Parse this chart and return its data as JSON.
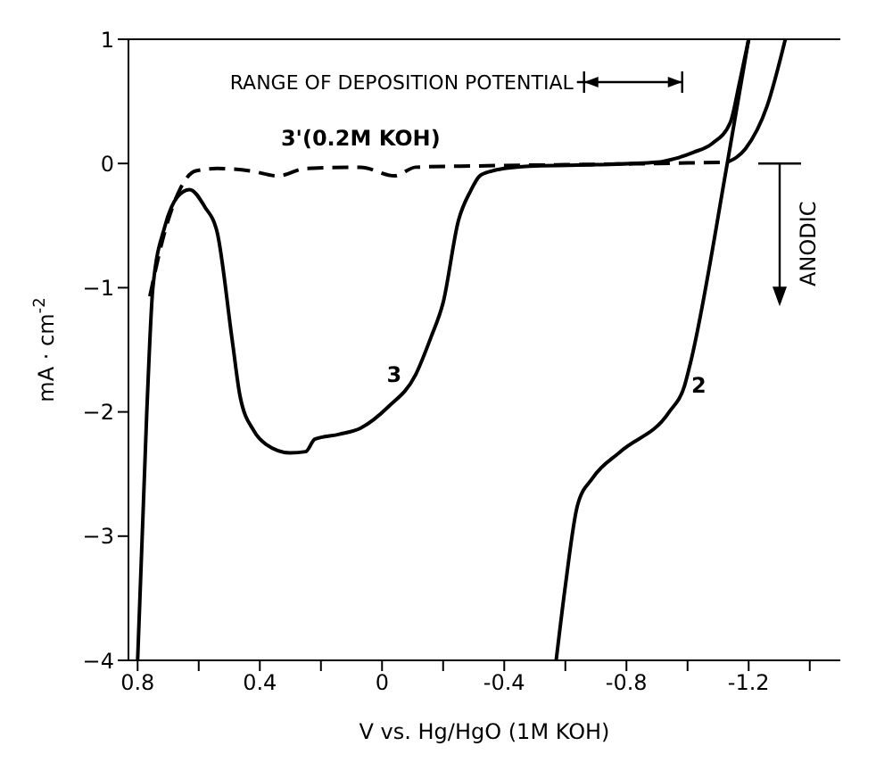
{
  "chart_data": {
    "type": "line",
    "xlabel": "V vs. Hg/HgO (1M KOH)",
    "ylabel": "mA · cm$^{-2}$",
    "xlim": [
      0.83,
      -1.5
    ],
    "ylim": [
      -4,
      1
    ],
    "xticks": [
      0.8,
      {
        "value": 0.6,
        "label": null
      },
      0.4,
      {
        "value": 0.2,
        "label": null
      },
      0,
      {
        "value": -0.2,
        "label": null
      },
      -0.4,
      {
        "value": -0.6,
        "label": null
      },
      -0.8,
      {
        "value": -1.0,
        "label": null
      },
      -1.2,
      {
        "value": -1.4,
        "label": null
      }
    ],
    "yticks": [
      1,
      0,
      -1,
      -2,
      -3,
      -4
    ],
    "marker": "none",
    "series": [
      {
        "name": "3",
        "color": "#000000",
        "line_style": "solid",
        "x": [
          0.8,
          0.77,
          0.75,
          0.71,
          0.67,
          0.63,
          0.58,
          0.54,
          0.49,
          0.465,
          0.42,
          0.38,
          0.3,
          0.25,
          0.22,
          0.14,
          0.07,
          -0.02,
          -0.11,
          -0.16,
          -0.2,
          -0.25,
          -0.29,
          -0.32,
          -0.36,
          -0.4,
          -0.5,
          -0.7,
          -0.9,
          -0.96,
          -1.02,
          -1.08,
          -1.14,
          -1.17,
          -1.2
        ],
        "values": [
          -4,
          -2,
          -1,
          -0.5,
          -0.27,
          -0.21,
          -0.35,
          -0.55,
          -1.43,
          -1.87,
          -2.15,
          -2.26,
          -2.33,
          -2.32,
          -2.22,
          -2.18,
          -2.13,
          -1.96,
          -1.7,
          -1.4,
          -1.12,
          -0.46,
          -0.22,
          -0.1,
          -0.06,
          -0.04,
          -0.02,
          -0.01,
          0.01,
          0.04,
          0.09,
          0.16,
          0.33,
          0.65,
          1.0
        ]
      },
      {
        "name": "2",
        "color": "#000000",
        "line_style": "solid",
        "x": [
          -0.57,
          -0.6,
          -0.64,
          -0.69,
          -0.78,
          -0.94,
          -0.99,
          -1.01,
          -1.13,
          -1.2
        ],
        "values": [
          -4,
          -3.4,
          -2.75,
          -2.53,
          -2.32,
          -2.0,
          -1.79,
          -1.6,
          0,
          1.0
        ]
      },
      {
        "name": "3'(0.2M KOH)",
        "color": "#000000",
        "line_style": "dashed",
        "x": [
          0.76,
          0.71,
          0.66,
          0.61,
          0.54,
          0.43,
          0.34,
          0.25,
          0.07,
          -0.04,
          -0.11,
          -0.3,
          -0.6,
          -0.9,
          -1.13
        ],
        "values": [
          -1.07,
          -0.54,
          -0.2,
          -0.06,
          -0.04,
          -0.06,
          -0.1,
          -0.04,
          -0.03,
          -0.1,
          -0.03,
          -0.02,
          -0.01,
          0,
          0.01
        ]
      },
      {
        "color": "#000000",
        "line_style": "solid",
        "x": [
          -1.13,
          -1.19,
          -1.26,
          -1.32
        ],
        "values": [
          0.01,
          0.12,
          0.46,
          1.0
        ]
      }
    ],
    "annotations": [
      "RANGE OF DEPOSITION POTENTIAL",
      "ANODIC"
    ]
  }
}
